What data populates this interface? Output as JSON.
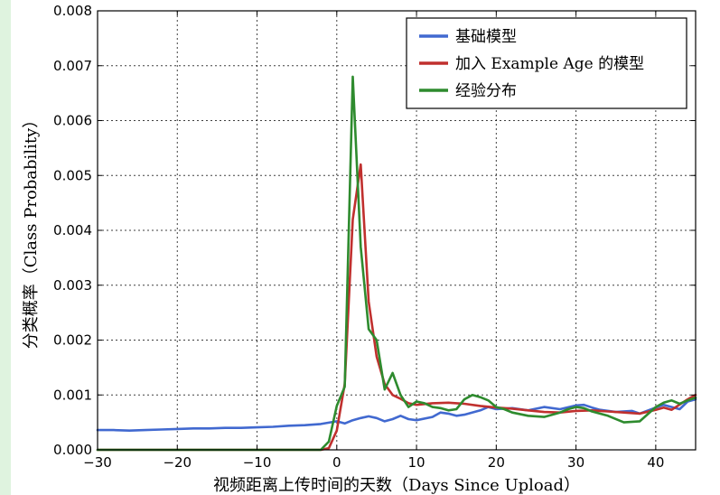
{
  "chart_data": {
    "type": "line",
    "title": "",
    "xlabel": "视频距离上传时间的天数（Days Since Upload）",
    "ylabel": "分类概率（Class Probability）",
    "xlim": [
      -30,
      45
    ],
    "ylim": [
      0,
      0.008
    ],
    "xticks": [
      -30,
      -20,
      -10,
      0,
      10,
      20,
      30,
      40
    ],
    "yticks": [
      0.0,
      0.001,
      0.002,
      0.003,
      0.004,
      0.005,
      0.006,
      0.007,
      0.008
    ],
    "xtick_labels": [
      "−30",
      "−20",
      "−10",
      "0",
      "10",
      "20",
      "30",
      "40"
    ],
    "ytick_labels": [
      "0.000",
      "0.001",
      "0.002",
      "0.003",
      "0.004",
      "0.005",
      "0.006",
      "0.007",
      "0.008"
    ],
    "grid": true,
    "legend_position": "top-right",
    "series": [
      {
        "name": "基础模型",
        "color": "#4169d0",
        "points": [
          [
            -30,
            0.00036
          ],
          [
            -28,
            0.00036
          ],
          [
            -26,
            0.00035
          ],
          [
            -24,
            0.00036
          ],
          [
            -22,
            0.00037
          ],
          [
            -20,
            0.00038
          ],
          [
            -18,
            0.00039
          ],
          [
            -16,
            0.00039
          ],
          [
            -14,
            0.0004
          ],
          [
            -12,
            0.0004
          ],
          [
            -10,
            0.00041
          ],
          [
            -8,
            0.00042
          ],
          [
            -6,
            0.00044
          ],
          [
            -4,
            0.00045
          ],
          [
            -2,
            0.00047
          ],
          [
            0,
            0.00052
          ],
          [
            1,
            0.00048
          ],
          [
            2,
            0.00054
          ],
          [
            3,
            0.00058
          ],
          [
            4,
            0.00061
          ],
          [
            5,
            0.00058
          ],
          [
            6,
            0.00052
          ],
          [
            7,
            0.00056
          ],
          [
            8,
            0.00062
          ],
          [
            9,
            0.00056
          ],
          [
            10,
            0.00054
          ],
          [
            12,
            0.0006
          ],
          [
            13,
            0.00068
          ],
          [
            14,
            0.00066
          ],
          [
            15,
            0.00062
          ],
          [
            16,
            0.00064
          ],
          [
            18,
            0.00072
          ],
          [
            19,
            0.00078
          ],
          [
            20,
            0.00074
          ],
          [
            22,
            0.00076
          ],
          [
            24,
            0.00072
          ],
          [
            26,
            0.00078
          ],
          [
            28,
            0.00074
          ],
          [
            30,
            0.00081
          ],
          [
            31,
            0.00082
          ],
          [
            32,
            0.00077
          ],
          [
            33,
            0.00073
          ],
          [
            35,
            0.00069
          ],
          [
            37,
            0.00071
          ],
          [
            38,
            0.00066
          ],
          [
            40,
            0.00077
          ],
          [
            41,
            0.00082
          ],
          [
            42,
            0.00078
          ],
          [
            43,
            0.00074
          ],
          [
            44,
            0.00088
          ],
          [
            45,
            0.00092
          ]
        ]
      },
      {
        "name": "加入 Example Age 的模型",
        "color": "#c0302e",
        "points": [
          [
            -30,
            0
          ],
          [
            -2,
            0
          ],
          [
            -1,
            3e-05
          ],
          [
            0,
            0.00035
          ],
          [
            1,
            0.0012
          ],
          [
            2,
            0.0042
          ],
          [
            3,
            0.0052
          ],
          [
            4,
            0.0027
          ],
          [
            5,
            0.0017
          ],
          [
            6,
            0.0012
          ],
          [
            7,
            0.001
          ],
          [
            8,
            0.00093
          ],
          [
            9,
            0.00085
          ],
          [
            10,
            0.00082
          ],
          [
            12,
            0.00085
          ],
          [
            14,
            0.00086
          ],
          [
            16,
            0.00084
          ],
          [
            18,
            0.0008
          ],
          [
            20,
            0.00077
          ],
          [
            22,
            0.00075
          ],
          [
            24,
            0.00072
          ],
          [
            26,
            0.00069
          ],
          [
            28,
            0.00068
          ],
          [
            30,
            0.00071
          ],
          [
            32,
            0.00072
          ],
          [
            34,
            0.0007
          ],
          [
            36,
            0.00068
          ],
          [
            38,
            0.00066
          ],
          [
            40,
            0.00073
          ],
          [
            41,
            0.00077
          ],
          [
            42,
            0.00073
          ],
          [
            44,
            0.00092
          ],
          [
            45,
            0.001
          ]
        ]
      },
      {
        "name": "经验分布",
        "color": "#2e8b2e",
        "points": [
          [
            -30,
            0
          ],
          [
            -2,
            0
          ],
          [
            -1,
            0.00015
          ],
          [
            0,
            0.0008
          ],
          [
            1,
            0.00115
          ],
          [
            2,
            0.0068
          ],
          [
            3,
            0.0037
          ],
          [
            4,
            0.0022
          ],
          [
            5,
            0.002
          ],
          [
            6,
            0.0011
          ],
          [
            7,
            0.0014
          ],
          [
            8,
            0.001
          ],
          [
            9,
            0.00078
          ],
          [
            10,
            0.00088
          ],
          [
            11,
            0.00085
          ],
          [
            12,
            0.00078
          ],
          [
            13,
            0.00076
          ],
          [
            14,
            0.00072
          ],
          [
            15,
            0.00074
          ],
          [
            16,
            0.00092
          ],
          [
            17,
            0.001
          ],
          [
            18,
            0.00096
          ],
          [
            19,
            0.0009
          ],
          [
            20,
            0.00078
          ],
          [
            21,
            0.00074
          ],
          [
            22,
            0.00068
          ],
          [
            24,
            0.00062
          ],
          [
            26,
            0.0006
          ],
          [
            28,
            0.00068
          ],
          [
            29,
            0.00074
          ],
          [
            30,
            0.00078
          ],
          [
            31,
            0.00076
          ],
          [
            32,
            0.0007
          ],
          [
            34,
            0.00062
          ],
          [
            36,
            0.0005
          ],
          [
            38,
            0.00052
          ],
          [
            40,
            0.00078
          ],
          [
            41,
            0.00086
          ],
          [
            42,
            0.0009
          ],
          [
            43,
            0.00084
          ],
          [
            44,
            0.0009
          ],
          [
            45,
            0.00095
          ]
        ]
      }
    ]
  }
}
